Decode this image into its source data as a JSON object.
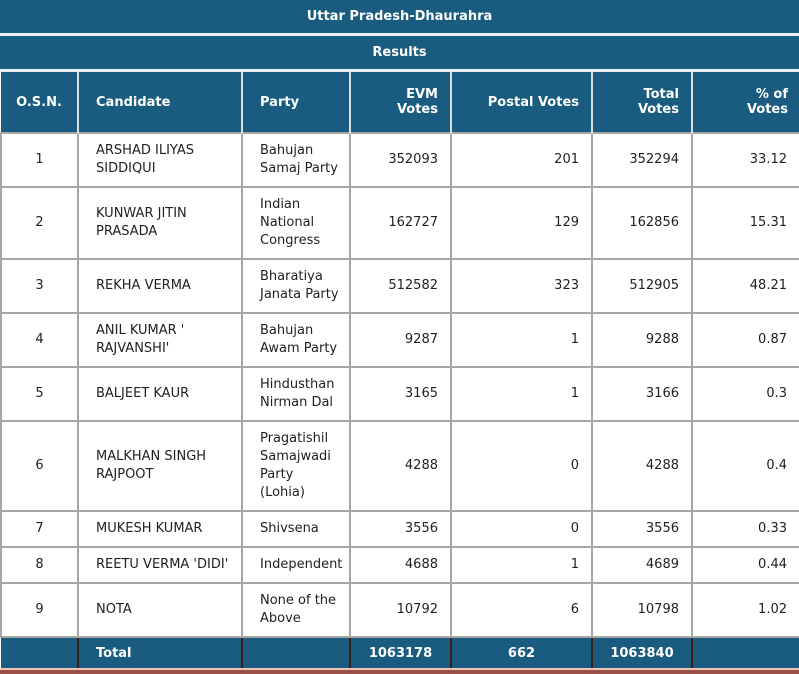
{
  "header": {
    "title": "Uttar Pradesh-Dhaurahra",
    "subtitle": "Results"
  },
  "columns": [
    {
      "label": "O.S.N."
    },
    {
      "label": "Candidate"
    },
    {
      "label": "Party"
    },
    {
      "label": "EVM\nVotes"
    },
    {
      "label": "Postal Votes"
    },
    {
      "label": "Total\nVotes"
    },
    {
      "label": "% of\nVotes"
    }
  ],
  "rows": [
    {
      "osn": "1",
      "candidate": "ARSHAD ILIYAS SIDDIQUI",
      "party": "Bahujan Samaj Party",
      "evm_votes": "352093",
      "postal_votes": "201",
      "total_votes": "352294",
      "pct_of_votes": "33.12"
    },
    {
      "osn": "2",
      "candidate": "KUNWAR JITIN PRASADA",
      "party": "Indian National Congress",
      "evm_votes": "162727",
      "postal_votes": "129",
      "total_votes": "162856",
      "pct_of_votes": "15.31"
    },
    {
      "osn": "3",
      "candidate": "REKHA VERMA",
      "party": "Bharatiya Janata Party",
      "evm_votes": "512582",
      "postal_votes": "323",
      "total_votes": "512905",
      "pct_of_votes": "48.21"
    },
    {
      "osn": "4",
      "candidate": "ANIL KUMAR ' RAJVANSHI'",
      "party": "Bahujan Awam Party",
      "evm_votes": "9287",
      "postal_votes": "1",
      "total_votes": "9288",
      "pct_of_votes": "0.87"
    },
    {
      "osn": "5",
      "candidate": "BALJEET KAUR",
      "party": "Hindusthan Nirman Dal",
      "evm_votes": "3165",
      "postal_votes": "1",
      "total_votes": "3166",
      "pct_of_votes": "0.3"
    },
    {
      "osn": "6",
      "candidate": "MALKHAN SINGH RAJPOOT",
      "party": "Pragatishil Samajwadi Party (Lohia)",
      "evm_votes": "4288",
      "postal_votes": "0",
      "total_votes": "4288",
      "pct_of_votes": "0.4"
    },
    {
      "osn": "7",
      "candidate": "MUKESH KUMAR",
      "party": "Shivsena",
      "evm_votes": "3556",
      "postal_votes": "0",
      "total_votes": "3556",
      "pct_of_votes": "0.33"
    },
    {
      "osn": "8",
      "candidate": "REETU VERMA 'DIDI'",
      "party": "Independent",
      "evm_votes": "4688",
      "postal_votes": "1",
      "total_votes": "4689",
      "pct_of_votes": "0.44"
    },
    {
      "osn": "9",
      "candidate": "NOTA",
      "party": "None of the Above",
      "evm_votes": "10792",
      "postal_votes": "6",
      "total_votes": "10798",
      "pct_of_votes": "1.02"
    }
  ],
  "total_row": {
    "label": "Total",
    "evm_votes": "1063178",
    "postal_votes": "662",
    "total_votes": "1063840"
  },
  "colors": {
    "header_teal": "#1A5C80",
    "body_border_gray": "#a6a6a6",
    "total_separator_maroon": "#401a16",
    "bottom_strip_brick": "#9d4f43",
    "bottom_strip_pink": "#e9c6ba"
  }
}
